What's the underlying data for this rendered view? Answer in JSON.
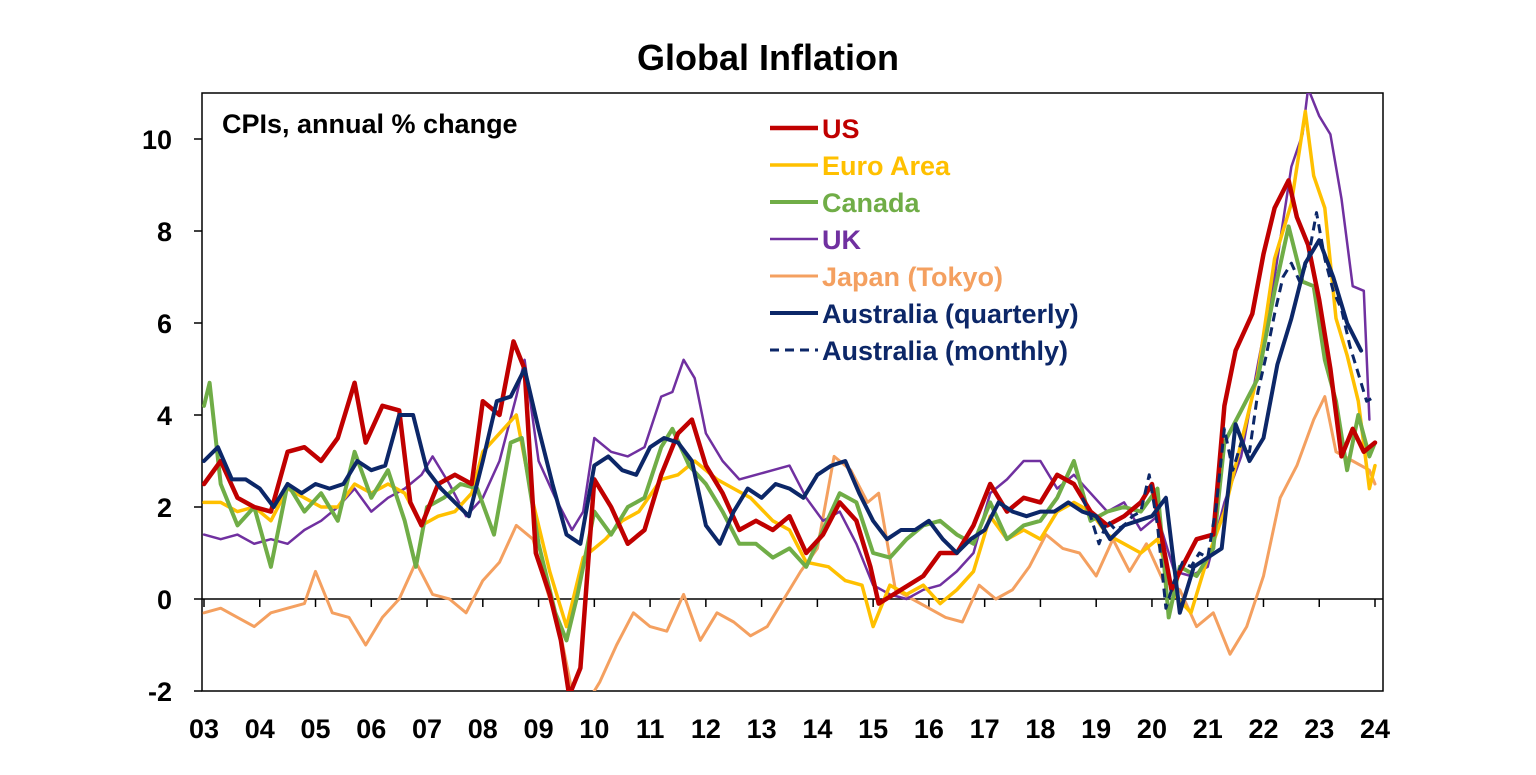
{
  "chart_data": {
    "type": "line",
    "title": "Global Inflation",
    "subtitle": "CPIs, annual % change",
    "xlabel": "",
    "ylabel": "",
    "xlim": [
      2003,
      2024
    ],
    "ylim": [
      -2,
      11
    ],
    "yticks": [
      -2,
      0,
      2,
      4,
      6,
      8,
      10
    ],
    "xtick_values": [
      2003,
      2004,
      2005,
      2006,
      2007,
      2008,
      2009,
      2010,
      2011,
      2012,
      2013,
      2014,
      2015,
      2016,
      2017,
      2018,
      2019,
      2020,
      2021,
      2022,
      2023,
      2024
    ],
    "xtick_labels": [
      "03",
      "04",
      "05",
      "06",
      "07",
      "08",
      "09",
      "10",
      "11",
      "12",
      "13",
      "14",
      "15",
      "16",
      "17",
      "18",
      "19",
      "20",
      "21",
      "22",
      "23",
      "24"
    ],
    "legend_position": "top-center",
    "series": [
      {
        "name": "US",
        "color": "#C00000",
        "width": 4.5,
        "dash": "",
        "x": [
          2003.0,
          2003.3,
          2003.6,
          2003.9,
          2004.2,
          2004.5,
          2004.8,
          2005.1,
          2005.4,
          2005.7,
          2005.9,
          2006.2,
          2006.5,
          2006.7,
          2006.9,
          2007.2,
          2007.5,
          2007.8,
          2008.0,
          2008.3,
          2008.55,
          2008.75,
          2008.95,
          2009.2,
          2009.4,
          2009.55,
          2009.75,
          2010.0,
          2010.3,
          2010.6,
          2010.9,
          2011.2,
          2011.5,
          2011.75,
          2012.0,
          2012.3,
          2012.6,
          2012.9,
          2013.2,
          2013.5,
          2013.8,
          2014.1,
          2014.4,
          2014.7,
          2014.95,
          2015.1,
          2015.5,
          2015.9,
          2016.2,
          2016.5,
          2016.8,
          2017.1,
          2017.4,
          2017.7,
          2018.0,
          2018.3,
          2018.6,
          2018.9,
          2019.2,
          2019.5,
          2019.8,
          2020.0,
          2020.15,
          2020.35,
          2020.5,
          2020.8,
          2021.1,
          2021.3,
          2021.5,
          2021.8,
          2022.0,
          2022.2,
          2022.45,
          2022.6,
          2022.8,
          2023.0,
          2023.2,
          2023.4,
          2023.6,
          2023.8,
          2024.0
        ],
        "values": [
          2.5,
          3.0,
          2.2,
          2.0,
          1.9,
          3.2,
          3.3,
          3.0,
          3.5,
          4.7,
          3.4,
          4.2,
          4.1,
          2.1,
          1.6,
          2.5,
          2.7,
          2.5,
          4.3,
          4.0,
          5.6,
          5.0,
          1.0,
          0.1,
          -0.9,
          -2.1,
          -1.5,
          2.6,
          2.0,
          1.2,
          1.5,
          2.7,
          3.6,
          3.9,
          2.9,
          2.3,
          1.5,
          1.7,
          1.5,
          1.8,
          1.0,
          1.4,
          2.1,
          1.7,
          0.7,
          -0.1,
          0.2,
          0.5,
          1.0,
          1.0,
          1.6,
          2.5,
          1.9,
          2.2,
          2.1,
          2.7,
          2.5,
          1.9,
          1.6,
          1.8,
          2.1,
          2.5,
          1.5,
          0.2,
          0.6,
          1.3,
          1.4,
          4.2,
          5.4,
          6.2,
          7.5,
          8.5,
          9.1,
          8.3,
          7.7,
          6.5,
          5.0,
          3.1,
          3.7,
          3.2,
          3.4
        ]
      },
      {
        "name": "Euro Area",
        "color": "#FFC000",
        "width": 3.5,
        "dash": "",
        "x": [
          2003.0,
          2003.3,
          2003.6,
          2003.9,
          2004.2,
          2004.5,
          2004.8,
          2005.1,
          2005.4,
          2005.7,
          2006.0,
          2006.3,
          2006.6,
          2006.9,
          2007.2,
          2007.5,
          2007.8,
          2008.0,
          2008.3,
          2008.6,
          2008.9,
          2009.2,
          2009.5,
          2009.8,
          2010.2,
          2010.5,
          2010.8,
          2011.2,
          2011.5,
          2011.8,
          2012.2,
          2012.5,
          2012.8,
          2013.2,
          2013.5,
          2013.8,
          2014.2,
          2014.5,
          2014.8,
          2015.0,
          2015.3,
          2015.6,
          2015.9,
          2016.2,
          2016.5,
          2016.8,
          2017.1,
          2017.4,
          2017.7,
          2018.0,
          2018.3,
          2018.6,
          2018.9,
          2019.2,
          2019.5,
          2019.8,
          2020.1,
          2020.4,
          2020.7,
          2021.0,
          2021.3,
          2021.6,
          2021.9,
          2022.2,
          2022.5,
          2022.75,
          2022.9,
          2023.1,
          2023.3,
          2023.5,
          2023.7,
          2023.9,
          2024.0
        ],
        "values": [
          2.1,
          2.1,
          1.9,
          2.0,
          1.7,
          2.4,
          2.2,
          2.0,
          2.0,
          2.5,
          2.3,
          2.5,
          2.3,
          1.6,
          1.8,
          1.9,
          2.3,
          3.2,
          3.6,
          4.0,
          2.1,
          0.6,
          -0.6,
          0.9,
          1.3,
          1.7,
          1.9,
          2.6,
          2.7,
          3.0,
          2.6,
          2.4,
          2.2,
          1.7,
          1.5,
          0.8,
          0.7,
          0.4,
          0.3,
          -0.6,
          0.3,
          0.1,
          0.3,
          -0.1,
          0.2,
          0.6,
          1.8,
          1.3,
          1.5,
          1.3,
          1.9,
          2.1,
          1.9,
          1.4,
          1.2,
          1.0,
          1.3,
          0.1,
          -0.3,
          0.9,
          1.9,
          3.4,
          4.9,
          7.4,
          8.6,
          10.6,
          9.2,
          8.5,
          6.1,
          5.3,
          4.3,
          2.4,
          2.9
        ]
      },
      {
        "name": "Canada",
        "color": "#70AD47",
        "width": 4.0,
        "dash": "",
        "x": [
          2003.0,
          2003.1,
          2003.3,
          2003.6,
          2003.9,
          2004.2,
          2004.5,
          2004.8,
          2005.1,
          2005.4,
          2005.7,
          2006.0,
          2006.3,
          2006.6,
          2006.8,
          2007.0,
          2007.3,
          2007.6,
          2007.9,
          2008.2,
          2008.5,
          2008.7,
          2009.0,
          2009.3,
          2009.5,
          2009.7,
          2010.0,
          2010.3,
          2010.6,
          2010.9,
          2011.2,
          2011.4,
          2011.7,
          2012.0,
          2012.3,
          2012.6,
          2012.9,
          2013.2,
          2013.5,
          2013.8,
          2014.1,
          2014.4,
          2014.7,
          2015.0,
          2015.3,
          2015.6,
          2015.9,
          2016.2,
          2016.5,
          2016.8,
          2017.1,
          2017.4,
          2017.7,
          2018.0,
          2018.3,
          2018.6,
          2018.9,
          2019.2,
          2019.5,
          2019.8,
          2020.1,
          2020.3,
          2020.5,
          2020.8,
          2021.1,
          2021.3,
          2021.6,
          2021.9,
          2022.2,
          2022.45,
          2022.7,
          2022.9,
          2023.1,
          2023.3,
          2023.5,
          2023.7,
          2023.9,
          2024.0
        ],
        "values": [
          4.2,
          4.7,
          2.5,
          1.6,
          2.0,
          0.7,
          2.5,
          1.9,
          2.3,
          1.7,
          3.2,
          2.2,
          2.8,
          1.7,
          0.7,
          2.0,
          2.2,
          2.5,
          2.4,
          1.4,
          3.4,
          3.5,
          1.2,
          -0.3,
          -0.9,
          0.1,
          1.9,
          1.4,
          2.0,
          2.2,
          3.3,
          3.7,
          2.9,
          2.5,
          1.9,
          1.2,
          1.2,
          0.9,
          1.1,
          0.7,
          1.5,
          2.3,
          2.1,
          1.0,
          0.9,
          1.3,
          1.6,
          1.7,
          1.4,
          1.2,
          2.1,
          1.3,
          1.6,
          1.7,
          2.2,
          3.0,
          1.7,
          1.9,
          2.0,
          1.9,
          2.4,
          -0.4,
          0.7,
          0.5,
          1.1,
          3.4,
          4.1,
          4.8,
          6.7,
          8.1,
          6.9,
          6.8,
          5.2,
          4.3,
          2.8,
          4.0,
          3.1,
          3.4
        ]
      },
      {
        "name": "UK",
        "color": "#7030A0",
        "width": 2.5,
        "dash": "",
        "x": [
          2003.0,
          2003.3,
          2003.6,
          2003.9,
          2004.2,
          2004.5,
          2004.8,
          2005.1,
          2005.4,
          2005.7,
          2006.0,
          2006.3,
          2006.6,
          2006.9,
          2007.1,
          2007.4,
          2007.7,
          2008.0,
          2008.3,
          2008.6,
          2008.75,
          2009.0,
          2009.3,
          2009.6,
          2009.8,
          2010.0,
          2010.3,
          2010.6,
          2010.9,
          2011.2,
          2011.4,
          2011.6,
          2011.8,
          2012.0,
          2012.3,
          2012.6,
          2012.9,
          2013.2,
          2013.5,
          2013.8,
          2014.1,
          2014.4,
          2014.7,
          2015.0,
          2015.3,
          2015.6,
          2015.9,
          2016.2,
          2016.5,
          2016.8,
          2017.1,
          2017.4,
          2017.7,
          2018.0,
          2018.3,
          2018.6,
          2018.9,
          2019.2,
          2019.5,
          2019.8,
          2020.1,
          2020.4,
          2020.7,
          2021.0,
          2021.3,
          2021.6,
          2021.9,
          2022.2,
          2022.5,
          2022.7,
          2022.8,
          2023.0,
          2023.2,
          2023.4,
          2023.6,
          2023.8,
          2023.9
        ],
        "values": [
          1.4,
          1.3,
          1.4,
          1.2,
          1.3,
          1.2,
          1.5,
          1.7,
          2.0,
          2.4,
          1.9,
          2.2,
          2.4,
          2.7,
          3.1,
          2.5,
          1.8,
          2.2,
          3.0,
          4.4,
          5.2,
          3.0,
          2.2,
          1.5,
          1.9,
          3.5,
          3.2,
          3.1,
          3.3,
          4.4,
          4.5,
          5.2,
          4.8,
          3.6,
          3.0,
          2.6,
          2.7,
          2.8,
          2.9,
          2.2,
          1.7,
          1.9,
          1.2,
          0.3,
          0.1,
          0.0,
          0.2,
          0.3,
          0.6,
          1.0,
          2.3,
          2.6,
          3.0,
          3.0,
          2.4,
          2.7,
          2.3,
          1.9,
          2.1,
          1.5,
          1.8,
          0.6,
          0.5,
          0.7,
          2.1,
          3.1,
          5.1,
          7.0,
          9.4,
          10.1,
          11.1,
          10.5,
          10.1,
          8.7,
          6.8,
          6.7,
          3.9
        ]
      },
      {
        "name": "Japan (Tokyo)",
        "color": "#F4A060",
        "width": 3.0,
        "dash": "",
        "x": [
          2003.0,
          2003.3,
          2003.6,
          2003.9,
          2004.2,
          2004.5,
          2004.8,
          2005.0,
          2005.3,
          2005.6,
          2005.9,
          2006.2,
          2006.5,
          2006.8,
          2007.1,
          2007.4,
          2007.7,
          2008.0,
          2008.3,
          2008.6,
          2008.9,
          2009.1,
          2009.4,
          2009.6,
          2009.8,
          2010.1,
          2010.4,
          2010.7,
          2011.0,
          2011.3,
          2011.6,
          2011.9,
          2012.2,
          2012.5,
          2012.8,
          2013.1,
          2013.4,
          2013.7,
          2014.0,
          2014.3,
          2014.6,
          2014.9,
          2015.1,
          2015.4,
          2015.7,
          2016.0,
          2016.3,
          2016.6,
          2016.9,
          2017.2,
          2017.5,
          2017.8,
          2018.1,
          2018.4,
          2018.7,
          2019.0,
          2019.3,
          2019.6,
          2019.9,
          2020.2,
          2020.5,
          2020.8,
          2021.1,
          2021.4,
          2021.7,
          2022.0,
          2022.3,
          2022.6,
          2022.9,
          2023.1,
          2023.3,
          2023.6,
          2023.9,
          2024.0
        ],
        "values": [
          -0.3,
          -0.2,
          -0.4,
          -0.6,
          -0.3,
          -0.2,
          -0.1,
          0.6,
          -0.3,
          -0.4,
          -1.0,
          -0.4,
          0.0,
          0.8,
          0.1,
          0.0,
          -0.3,
          0.4,
          0.8,
          1.6,
          1.3,
          0.4,
          -0.8,
          -2.0,
          -2.4,
          -1.8,
          -1.0,
          -0.3,
          -0.6,
          -0.7,
          0.1,
          -0.9,
          -0.3,
          -0.5,
          -0.8,
          -0.6,
          0.0,
          0.6,
          1.1,
          3.1,
          2.8,
          2.1,
          2.3,
          0.2,
          0.0,
          -0.2,
          -0.4,
          -0.5,
          0.3,
          0.0,
          0.2,
          0.7,
          1.4,
          1.1,
          1.0,
          0.5,
          1.3,
          0.6,
          1.2,
          0.4,
          0.2,
          -0.6,
          -0.3,
          -1.2,
          -0.6,
          0.5,
          2.2,
          2.9,
          3.9,
          4.4,
          3.2,
          3.0,
          2.8,
          2.5
        ]
      },
      {
        "name": "Australia (quarterly)",
        "color": "#0C2768",
        "width": 4.0,
        "dash": "",
        "x": [
          2003.0,
          2003.25,
          2003.5,
          2003.75,
          2004.0,
          2004.25,
          2004.5,
          2004.75,
          2005.0,
          2005.25,
          2005.5,
          2005.75,
          2006.0,
          2006.25,
          2006.5,
          2006.75,
          2007.0,
          2007.25,
          2007.5,
          2007.75,
          2008.0,
          2008.25,
          2008.5,
          2008.75,
          2009.0,
          2009.25,
          2009.5,
          2009.75,
          2010.0,
          2010.25,
          2010.5,
          2010.75,
          2011.0,
          2011.25,
          2011.5,
          2011.75,
          2012.0,
          2012.25,
          2012.5,
          2012.75,
          2013.0,
          2013.25,
          2013.5,
          2013.75,
          2014.0,
          2014.25,
          2014.5,
          2014.75,
          2015.0,
          2015.25,
          2015.5,
          2015.75,
          2016.0,
          2016.25,
          2016.5,
          2016.75,
          2017.0,
          2017.25,
          2017.5,
          2017.75,
          2018.0,
          2018.25,
          2018.5,
          2018.75,
          2019.0,
          2019.25,
          2019.5,
          2019.75,
          2020.0,
          2020.25,
          2020.5,
          2020.75,
          2021.0,
          2021.25,
          2021.5,
          2021.75,
          2022.0,
          2022.25,
          2022.5,
          2022.75,
          2023.0,
          2023.25,
          2023.5,
          2023.75
        ],
        "values": [
          3.0,
          3.3,
          2.6,
          2.6,
          2.4,
          2.0,
          2.5,
          2.3,
          2.5,
          2.4,
          2.5,
          3.0,
          2.8,
          2.9,
          4.0,
          4.0,
          2.8,
          2.4,
          2.1,
          1.8,
          3.0,
          4.3,
          4.4,
          5.0,
          3.7,
          2.5,
          1.4,
          1.2,
          2.9,
          3.1,
          2.8,
          2.7,
          3.3,
          3.5,
          3.4,
          3.0,
          1.6,
          1.2,
          1.9,
          2.4,
          2.2,
          2.5,
          2.4,
          2.2,
          2.7,
          2.9,
          3.0,
          2.3,
          1.7,
          1.3,
          1.5,
          1.5,
          1.7,
          1.3,
          1.0,
          1.3,
          1.5,
          2.1,
          1.9,
          1.8,
          1.9,
          1.9,
          2.1,
          1.9,
          1.8,
          1.3,
          1.6,
          1.7,
          1.8,
          2.2,
          -0.3,
          0.7,
          0.9,
          1.1,
          3.8,
          3.0,
          3.5,
          5.1,
          6.1,
          7.3,
          7.8,
          7.0,
          6.0,
          5.4
        ]
      },
      {
        "name": "Australia (monthly)",
        "color": "#0C2768",
        "width": 3.0,
        "dash": "9,6",
        "x": [
          2018.75,
          2018.9,
          2019.05,
          2019.2,
          2019.35,
          2019.5,
          2019.65,
          2019.8,
          2019.95,
          2020.1,
          2020.25,
          2020.4,
          2020.55,
          2020.7,
          2020.85,
          2021.0,
          2021.15,
          2021.3,
          2021.45,
          2021.6,
          2021.75,
          2021.9,
          2022.05,
          2022.2,
          2022.35,
          2022.5,
          2022.65,
          2022.8,
          2022.95,
          2023.1,
          2023.25,
          2023.4,
          2023.55,
          2023.7,
          2023.85,
          2024.0
        ],
        "values": [
          2.2,
          1.8,
          1.2,
          1.7,
          1.5,
          1.6,
          1.8,
          1.9,
          2.7,
          1.6,
          -0.2,
          0.4,
          0.8,
          0.7,
          1.0,
          0.9,
          2.0,
          3.7,
          2.8,
          3.4,
          3.2,
          4.5,
          5.3,
          6.2,
          7.0,
          7.3,
          6.9,
          7.4,
          8.4,
          7.4,
          6.7,
          6.3,
          5.5,
          4.9,
          4.3,
          4.4
        ]
      }
    ]
  }
}
